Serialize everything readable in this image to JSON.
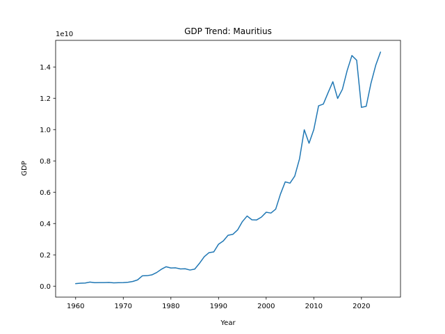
{
  "chart_data": {
    "type": "line",
    "title": "GDP Trend: Mauritius",
    "xlabel": "Year",
    "ylabel": "GDP",
    "y_offset_text": "1e10",
    "xlim": [
      1955.8,
      2028.2
    ],
    "ylim": [
      -0.07,
      1.57
    ],
    "y_scale_factor": 10000000000,
    "x_ticks": [
      1960,
      1970,
      1980,
      1990,
      2000,
      2010,
      2020
    ],
    "y_ticks": [
      0.0,
      0.2,
      0.4,
      0.6,
      0.8,
      1.0,
      1.2,
      1.4
    ],
    "y_tick_labels": [
      "0.0",
      "0.2",
      "0.4",
      "0.6",
      "0.8",
      "1.0",
      "1.2",
      "1.4"
    ],
    "grid": false,
    "colors": {
      "line": "#1f77b4"
    },
    "series": [
      {
        "x": [
          1960,
          1961,
          1962,
          1963,
          1964,
          1965,
          1966,
          1967,
          1968,
          1969,
          1970,
          1971,
          1972,
          1973,
          1974,
          1975,
          1976,
          1977,
          1978,
          1979,
          1980,
          1981,
          1982,
          1983,
          1984,
          1985,
          1986,
          1987,
          1988,
          1989,
          1990,
          1991,
          1992,
          1993,
          1994,
          1995,
          1996,
          1997,
          1998,
          1999,
          2000,
          2001,
          2002,
          2003,
          2004,
          2005,
          2006,
          2007,
          2008,
          2009,
          2010,
          2011,
          2012,
          2013,
          2014,
          2015,
          2016,
          2017,
          2018,
          2019,
          2020,
          2021,
          2022,
          2023,
          2024
        ],
        "y": [
          0.016,
          0.019,
          0.02,
          0.026,
          0.022,
          0.023,
          0.023,
          0.024,
          0.021,
          0.022,
          0.023,
          0.025,
          0.03,
          0.04,
          0.066,
          0.067,
          0.072,
          0.087,
          0.108,
          0.124,
          0.116,
          0.117,
          0.11,
          0.111,
          0.103,
          0.109,
          0.146,
          0.188,
          0.214,
          0.219,
          0.268,
          0.289,
          0.325,
          0.331,
          0.359,
          0.412,
          0.448,
          0.424,
          0.423,
          0.441,
          0.472,
          0.467,
          0.492,
          0.588,
          0.666,
          0.658,
          0.703,
          0.813,
          0.999,
          0.913,
          1.0,
          1.152,
          1.163,
          1.236,
          1.306,
          1.199,
          1.257,
          1.377,
          1.473,
          1.443,
          1.142,
          1.149,
          1.296,
          1.411,
          1.495
        ]
      }
    ]
  }
}
